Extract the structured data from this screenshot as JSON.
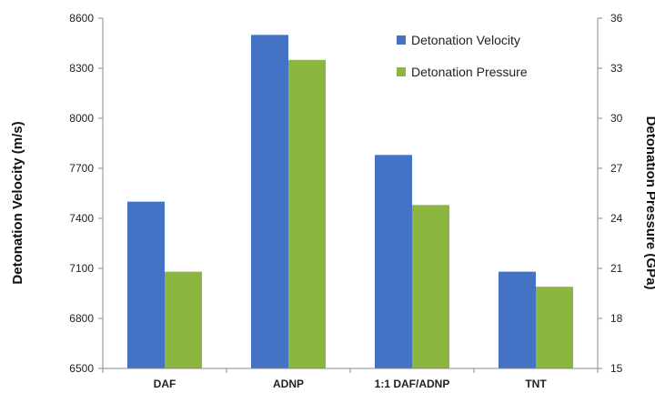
{
  "chart_data": {
    "type": "bar",
    "title": "",
    "categories": [
      "DAF",
      "ADNP",
      "1:1 DAF/ADNP",
      "TNT"
    ],
    "series": [
      {
        "name": "Detonation Velocity",
        "axis": "left",
        "color": "#4472C4",
        "values": [
          7500,
          8500,
          7780,
          7080
        ]
      },
      {
        "name": "Detonation Pressure",
        "axis": "right",
        "color": "#8DB641",
        "values": [
          20.8,
          33.5,
          24.8,
          19.9
        ]
      }
    ],
    "y_left": {
      "label": "Detonation Velocity (m/s)",
      "ylim": [
        6500,
        8600
      ],
      "ticks": [
        "6500",
        "6800",
        "7100",
        "7400",
        "7700",
        "8000",
        "8300",
        "8600"
      ]
    },
    "y_right": {
      "label": "Detonation Pressure (GPa)",
      "ylim": [
        15,
        36
      ],
      "ticks": [
        "15",
        "18",
        "21",
        "24",
        "27",
        "30",
        "33",
        "36"
      ]
    },
    "grid": false,
    "legend_position": "top-right"
  }
}
